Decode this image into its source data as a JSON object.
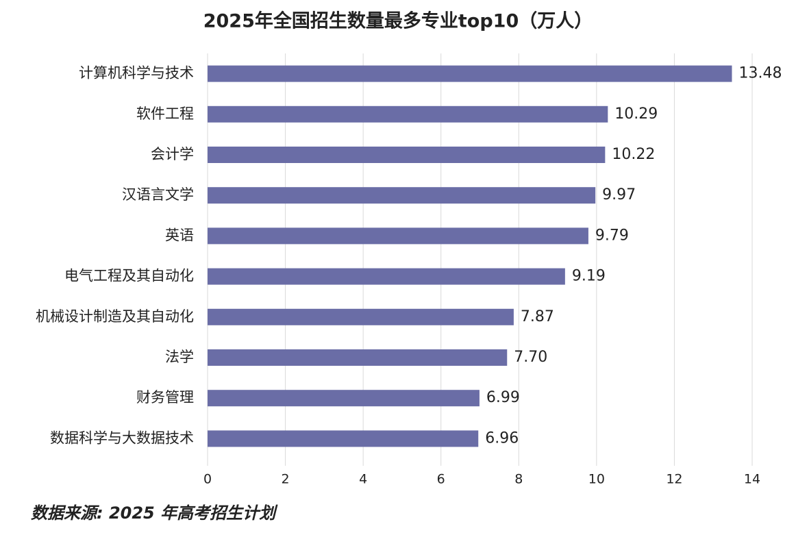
{
  "chart_data": {
    "type": "bar",
    "orientation": "horizontal",
    "title": "2025年全国招生数量最多专业top10（万人）",
    "categories": [
      "计算机科学与技术",
      "软件工程",
      "会计学",
      "汉语言文学",
      "英语",
      "电气工程及其自动化",
      "机械设计制造及其自动化",
      "法学",
      "财务管理",
      "数据科学与大数据技术"
    ],
    "values": [
      13.48,
      10.29,
      10.22,
      9.97,
      9.79,
      9.19,
      7.87,
      7.7,
      6.99,
      6.96
    ],
    "value_labels": [
      "13.48",
      "10.29",
      "10.22",
      "9.97",
      "9.79",
      "9.19",
      "7.87",
      "7.70",
      "6.99",
      "6.96"
    ],
    "color": "#6a6da6",
    "xlim": [
      0,
      14
    ],
    "xticks": [
      0,
      2,
      4,
      6,
      8,
      10,
      12,
      14
    ],
    "grid": true,
    "source": "数据来源: 2025 年高考招生计划"
  }
}
